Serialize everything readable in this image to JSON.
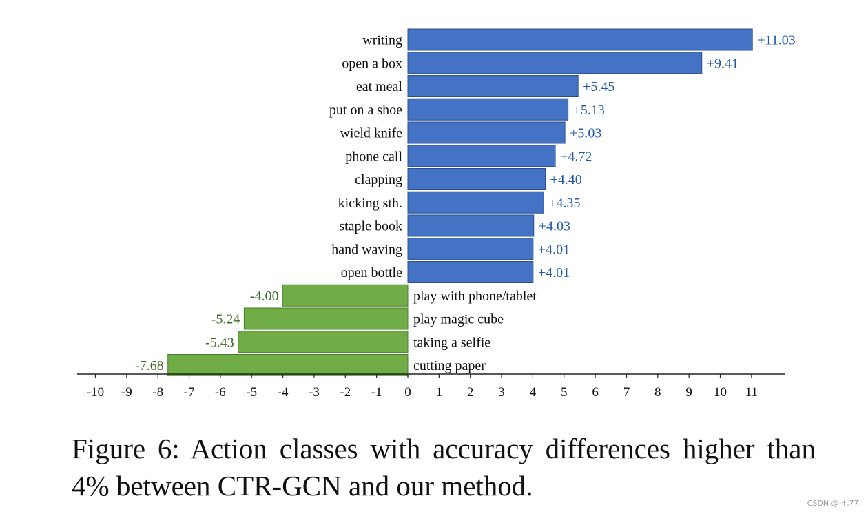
{
  "chart_data": {
    "type": "bar",
    "orientation": "horizontal",
    "categories": [
      "writing",
      "open a box",
      "eat meal",
      "put on a shoe",
      "wield knife",
      "phone call",
      "clapping",
      "kicking sth.",
      "staple book",
      "hand waving",
      "open bottle",
      "play with phone/tablet",
      "play magic cube",
      "taking a selfie",
      "cutting paper"
    ],
    "values": [
      11.03,
      9.41,
      5.45,
      5.13,
      5.03,
      4.72,
      4.4,
      4.35,
      4.03,
      4.01,
      4.01,
      -4.0,
      -5.24,
      -5.43,
      -7.68
    ],
    "value_labels": [
      "+11.03",
      "+9.41",
      "+5.45",
      "+5.13",
      "+5.03",
      "+4.72",
      "+4.40",
      "+4.35",
      "+4.03",
      "+4.01",
      "+4.01",
      "-4.00",
      "-5.24",
      "-5.43",
      "-7.68"
    ],
    "xlim": [
      -10,
      11
    ],
    "xticks": [
      "-10",
      "-9",
      "-8",
      "-7",
      "-6",
      "-5",
      "-4",
      "-3",
      "-2",
      "-1",
      "0",
      "1",
      "2",
      "3",
      "4",
      "5",
      "6",
      "7",
      "8",
      "9",
      "10",
      "11"
    ],
    "colors": {
      "positive_bar": "#4472c4",
      "negative_bar": "#70ad47",
      "positive_label": "#1f5ba8",
      "negative_label": "#3d6b25",
      "bar_edge_positive": "#2d4f8e",
      "bar_edge_negative": "#4b7d2e"
    },
    "title": "",
    "xlabel": "",
    "ylabel": ""
  },
  "caption": "Figure 6:  Action classes with accuracy differences higher than 4% between CTR-GCN and our method.",
  "watermark": "CSDN @-七77."
}
